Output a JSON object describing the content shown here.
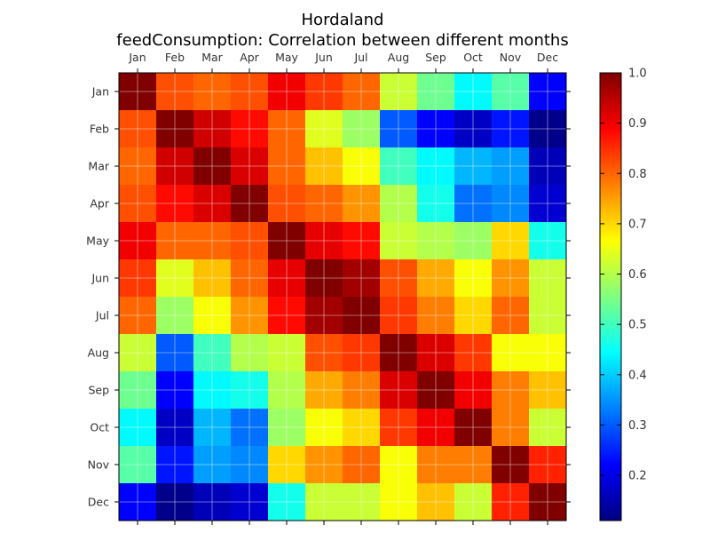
{
  "chart_data": {
    "type": "heatmap",
    "title": "Hordaland",
    "subtitle": "feedConsumption: Correlation between different months",
    "x_categories": [
      "Jan",
      "Feb",
      "Mar",
      "Apr",
      "May",
      "Jun",
      "Jul",
      "Aug",
      "Sep",
      "Oct",
      "Nov",
      "Dec"
    ],
    "y_categories": [
      "Jan",
      "Feb",
      "Mar",
      "Apr",
      "May",
      "Jun",
      "Jul",
      "Aug",
      "Sep",
      "Oct",
      "Nov",
      "Dec"
    ],
    "x_tick_position": "top",
    "values": [
      [
        1.0,
        0.82,
        0.8,
        0.82,
        0.9,
        0.84,
        0.8,
        0.62,
        0.54,
        0.44,
        0.52,
        0.22
      ],
      [
        0.82,
        1.0,
        0.93,
        0.88,
        0.8,
        0.64,
        0.58,
        0.3,
        0.22,
        0.17,
        0.24,
        0.12
      ],
      [
        0.8,
        0.93,
        1.0,
        0.92,
        0.8,
        0.72,
        0.66,
        0.5,
        0.44,
        0.38,
        0.36,
        0.16
      ],
      [
        0.82,
        0.88,
        0.92,
        1.0,
        0.82,
        0.8,
        0.76,
        0.6,
        0.46,
        0.32,
        0.34,
        0.18
      ],
      [
        0.9,
        0.8,
        0.8,
        0.82,
        1.0,
        0.91,
        0.88,
        0.62,
        0.6,
        0.58,
        0.7,
        0.46
      ],
      [
        0.84,
        0.64,
        0.72,
        0.8,
        0.91,
        1.0,
        0.97,
        0.82,
        0.74,
        0.66,
        0.76,
        0.62
      ],
      [
        0.8,
        0.58,
        0.66,
        0.76,
        0.88,
        0.97,
        1.0,
        0.84,
        0.78,
        0.7,
        0.8,
        0.62
      ],
      [
        0.62,
        0.3,
        0.5,
        0.6,
        0.62,
        0.82,
        0.84,
        1.0,
        0.92,
        0.84,
        0.66,
        0.66
      ],
      [
        0.54,
        0.22,
        0.44,
        0.46,
        0.6,
        0.74,
        0.78,
        0.92,
        1.0,
        0.9,
        0.78,
        0.72
      ],
      [
        0.44,
        0.17,
        0.38,
        0.32,
        0.58,
        0.66,
        0.7,
        0.84,
        0.9,
        1.0,
        0.78,
        0.62
      ],
      [
        0.52,
        0.24,
        0.36,
        0.34,
        0.7,
        0.76,
        0.8,
        0.66,
        0.78,
        0.78,
        1.0,
        0.86
      ],
      [
        0.22,
        0.12,
        0.16,
        0.18,
        0.46,
        0.62,
        0.62,
        0.66,
        0.72,
        0.62,
        0.86,
        1.0
      ]
    ],
    "colormap": "jet",
    "vmin": 0.11,
    "vmax": 1.0,
    "colorbar_ticks": [
      0.2,
      0.3,
      0.4,
      0.5,
      0.6,
      0.7,
      0.8,
      0.9,
      1.0
    ],
    "colorbar_tick_labels": [
      "0.2",
      "0.3",
      "0.4",
      "0.5",
      "0.6",
      "0.7",
      "0.8",
      "0.9",
      "1.0"
    ],
    "grid": true
  }
}
